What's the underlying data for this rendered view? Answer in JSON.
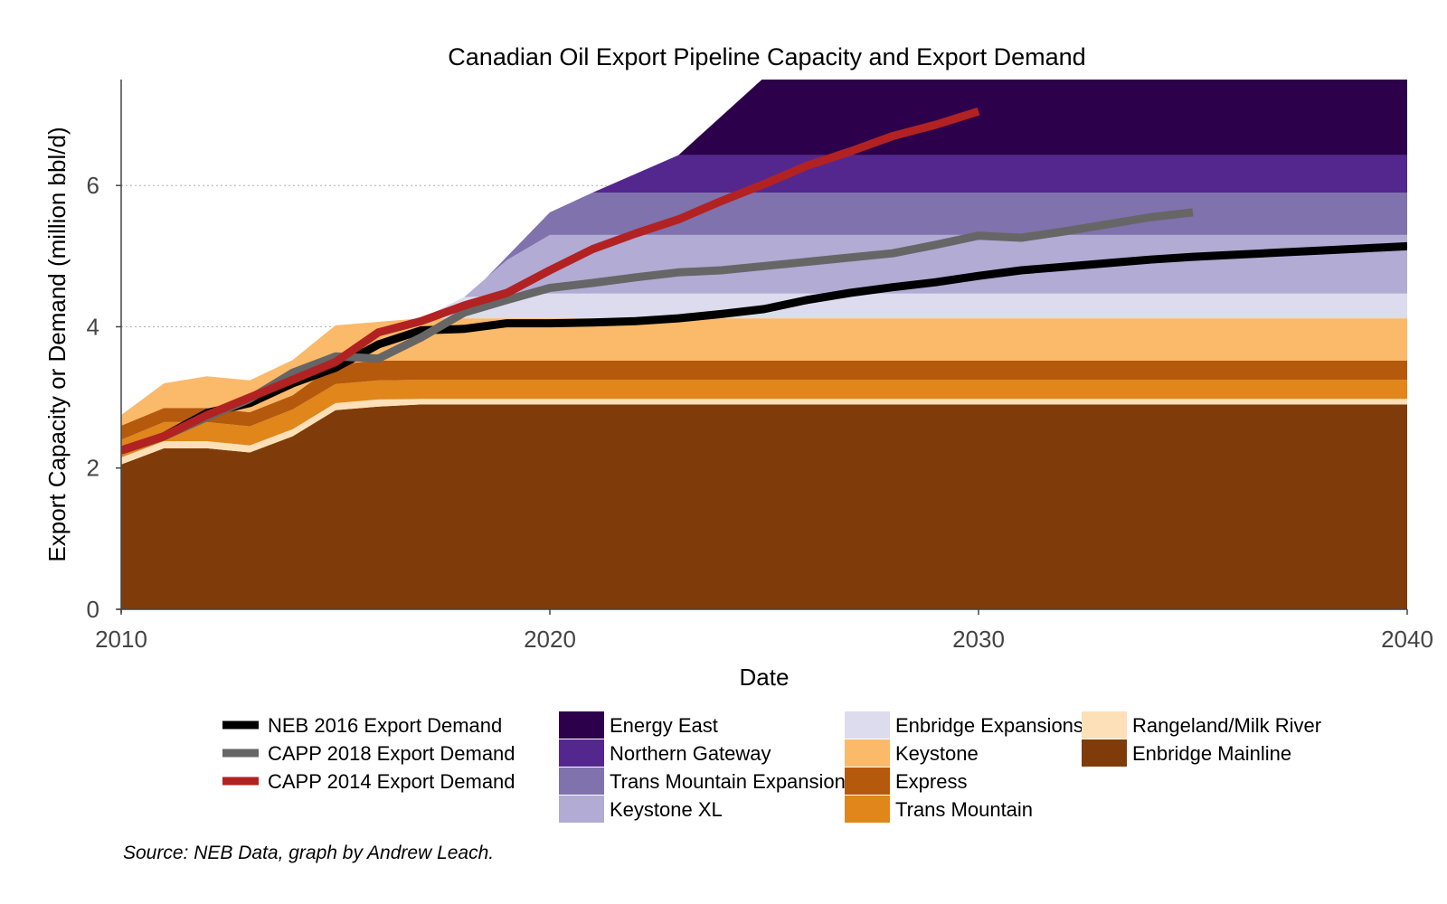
{
  "chart_data": {
    "type": "area",
    "title": "Canadian Oil Export Pipeline Capacity and Export Demand",
    "xlabel": "Date",
    "ylabel": "Export Capacity or Demand (million bbl/d)",
    "xlim": [
      2010,
      2040
    ],
    "ylim": [
      0,
      7.5
    ],
    "xticks": [
      2010,
      2020,
      2030,
      2040
    ],
    "yticks": [
      0,
      2,
      4,
      6
    ],
    "gridlines": [
      4,
      6
    ],
    "source_note": "Source: NEB Data, graph by Andrew Leach.",
    "areas": [
      {
        "name": "Enbridge Mainline",
        "color": "#7f3c0a",
        "x": [
          2010,
          2011,
          2012,
          2013,
          2014,
          2015,
          2016,
          2017,
          2020,
          2030,
          2040
        ],
        "values": [
          2.05,
          2.28,
          2.28,
          2.22,
          2.45,
          2.82,
          2.87,
          2.9,
          2.9,
          2.9,
          2.9
        ]
      },
      {
        "name": "Rangeland/Milk River",
        "color": "#fde0b8",
        "x": [
          2010,
          2011,
          2012,
          2013,
          2014,
          2015,
          2016,
          2017,
          2020,
          2030,
          2040
        ],
        "values": [
          0.1,
          0.1,
          0.1,
          0.1,
          0.1,
          0.1,
          0.1,
          0.08,
          0.08,
          0.08,
          0.08
        ]
      },
      {
        "name": "Trans Mountain",
        "color": "#e0861a",
        "x": [
          2010,
          2011,
          2012,
          2013,
          2014,
          2015,
          2016,
          2017,
          2020,
          2030,
          2040
        ],
        "values": [
          0.25,
          0.27,
          0.27,
          0.27,
          0.28,
          0.27,
          0.27,
          0.27,
          0.27,
          0.27,
          0.27
        ]
      },
      {
        "name": "Express",
        "color": "#b5590c",
        "x": [
          2010,
          2011,
          2012,
          2013,
          2014,
          2015,
          2016,
          2017,
          2020,
          2030,
          2040
        ],
        "values": [
          0.2,
          0.2,
          0.2,
          0.2,
          0.2,
          0.28,
          0.28,
          0.27,
          0.27,
          0.27,
          0.27
        ]
      },
      {
        "name": "Keystone",
        "color": "#fbb96a",
        "x": [
          2010,
          2011,
          2012,
          2013,
          2014,
          2015,
          2016,
          2017,
          2020,
          2030,
          2040
        ],
        "values": [
          0.15,
          0.35,
          0.45,
          0.45,
          0.5,
          0.55,
          0.55,
          0.6,
          0.6,
          0.6,
          0.6
        ]
      },
      {
        "name": "Enbridge Expansions",
        "color": "#dcdcee",
        "x": [
          2010,
          2017,
          2018,
          2020,
          2030,
          2040
        ],
        "values": [
          0,
          0,
          0.3,
          0.35,
          0.35,
          0.35
        ]
      },
      {
        "name": "Keystone XL",
        "color": "#b2abd4",
        "x": [
          2010,
          2018,
          2019,
          2020,
          2030,
          2040
        ],
        "values": [
          0,
          0,
          0.5,
          0.83,
          0.83,
          0.83
        ]
      },
      {
        "name": "Trans Mountain Expansion",
        "color": "#8072ac",
        "x": [
          2010,
          2018.5,
          2019,
          2020,
          2021,
          2030,
          2040
        ],
        "values": [
          0,
          0,
          0.05,
          0.32,
          0.6,
          0.6,
          0.6
        ]
      },
      {
        "name": "Northern Gateway",
        "color": "#54278f",
        "x": [
          2010,
          2021,
          2023,
          2030,
          2040
        ],
        "values": [
          0,
          0,
          0.53,
          0.53,
          0.53
        ]
      },
      {
        "name": "Energy East",
        "color": "#2d004b",
        "x": [
          2010,
          2023,
          2025,
          2030,
          2040
        ],
        "values": [
          0,
          0,
          1.1,
          1.1,
          1.1
        ]
      }
    ],
    "series": [
      {
        "name": "NEB 2016 Export Demand",
        "color": "#000000",
        "x": [
          2010,
          2011,
          2012,
          2013,
          2014,
          2015,
          2016,
          2017,
          2018,
          2019,
          2020,
          2021,
          2022,
          2023,
          2024,
          2025,
          2026,
          2027,
          2028,
          2029,
          2030,
          2031,
          2032,
          2033,
          2034,
          2035,
          2036,
          2037,
          2038,
          2039,
          2040
        ],
        "values": [
          2.25,
          2.45,
          2.78,
          2.92,
          3.2,
          3.42,
          3.75,
          3.95,
          3.97,
          4.05,
          4.05,
          4.06,
          4.08,
          4.12,
          4.18,
          4.25,
          4.38,
          4.48,
          4.56,
          4.63,
          4.72,
          4.8,
          4.85,
          4.9,
          4.95,
          4.99,
          5.02,
          5.05,
          5.08,
          5.11,
          5.14
        ]
      },
      {
        "name": "CAPP 2018 Export Demand",
        "color": "#666666",
        "x": [
          2010,
          2011,
          2012,
          2013,
          2014,
          2015,
          2016,
          2017,
          2018,
          2019,
          2020,
          2021,
          2022,
          2023,
          2024,
          2025,
          2026,
          2027,
          2028,
          2029,
          2030,
          2031,
          2032,
          2033,
          2034,
          2035
        ],
        "values": [
          2.25,
          2.45,
          2.72,
          2.98,
          3.35,
          3.58,
          3.55,
          3.85,
          4.2,
          4.38,
          4.55,
          4.62,
          4.7,
          4.77,
          4.8,
          4.86,
          4.92,
          4.98,
          5.04,
          5.16,
          5.29,
          5.26,
          5.35,
          5.45,
          5.55,
          5.62
        ]
      },
      {
        "name": "CAPP 2014 Export Demand",
        "color": "#b22222",
        "x": [
          2010,
          2011,
          2012,
          2013,
          2014,
          2015,
          2016,
          2017,
          2018,
          2019,
          2020,
          2021,
          2022,
          2023,
          2024,
          2025,
          2026,
          2027,
          2028,
          2029,
          2030
        ],
        "values": [
          2.25,
          2.45,
          2.75,
          3.0,
          3.25,
          3.5,
          3.92,
          4.08,
          4.3,
          4.48,
          4.8,
          5.1,
          5.32,
          5.52,
          5.78,
          6.02,
          6.28,
          6.48,
          6.7,
          6.86,
          7.05
        ]
      }
    ],
    "legend": {
      "lines": [
        "NEB 2016 Export Demand",
        "CAPP 2018 Export Demand",
        "CAPP 2014 Export Demand"
      ],
      "columns": [
        [
          "Energy East",
          "Northern Gateway",
          "Trans Mountain Expansion",
          "Keystone XL"
        ],
        [
          "Enbridge Expansions",
          "Keystone",
          "Express",
          "Trans Mountain"
        ],
        [
          "Rangeland/Milk River",
          "Enbridge Mainline"
        ]
      ]
    }
  }
}
